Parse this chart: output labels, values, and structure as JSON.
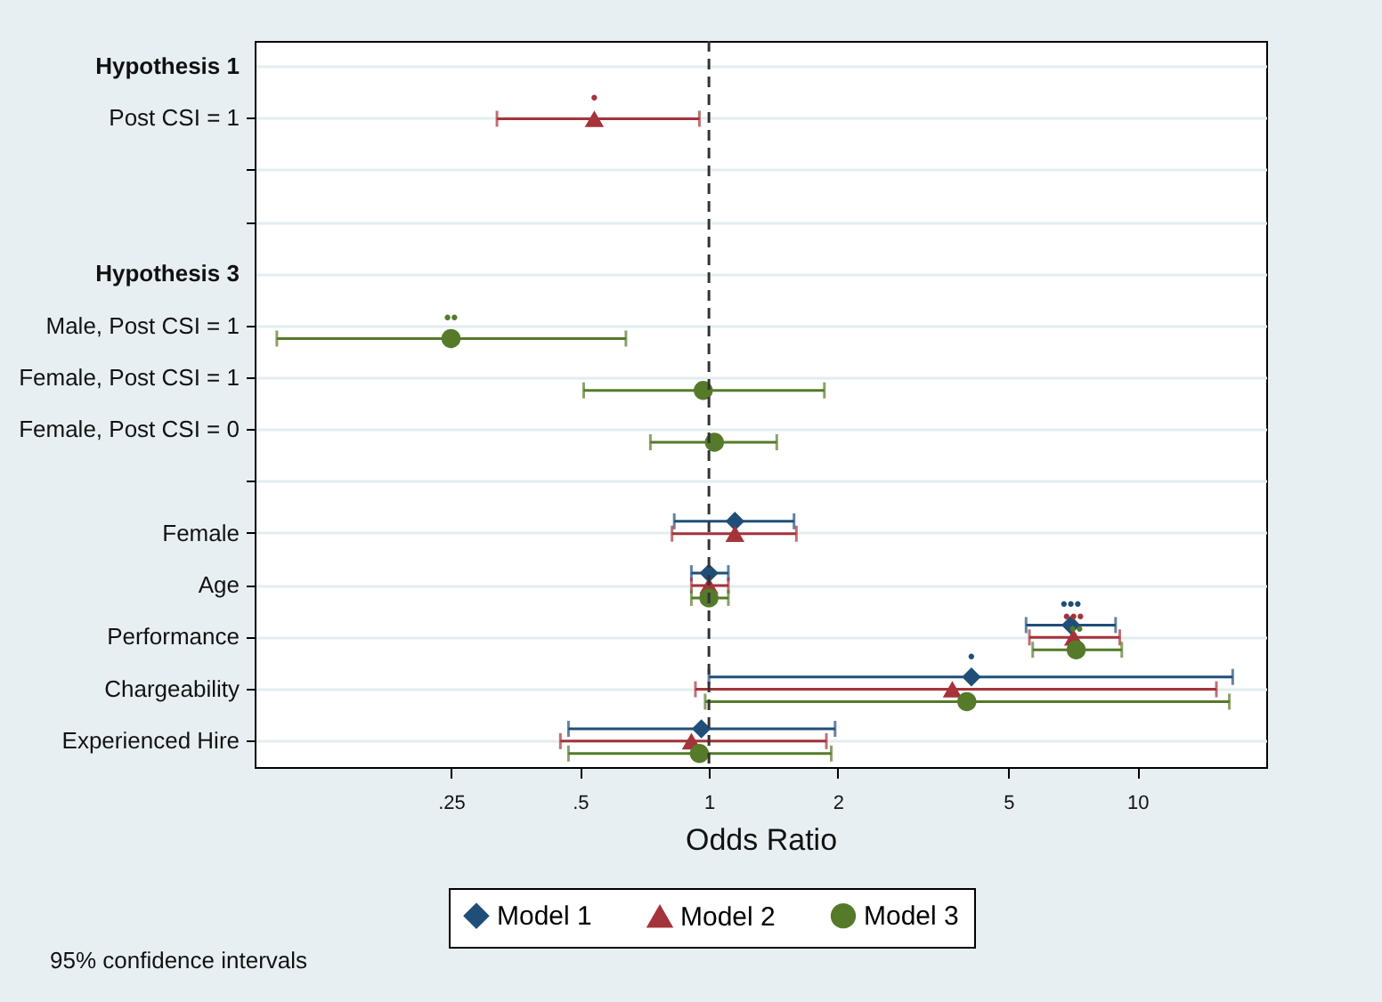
{
  "chart_data": {
    "type": "scatter",
    "orientation": "horizontal",
    "xlabel": "Odds Ratio",
    "log": "x",
    "grid": "y",
    "legend": "bottom",
    "categories": [
      "Hypothesis 1",
      "Post CSI = 1",
      null,
      null,
      "Hypothesis 3",
      "Male, Post CSI = 1",
      "Female, Post CSI = 1",
      "Female, Post CSI = 0",
      null,
      "Female",
      "Age",
      "Performance",
      "Chargeability",
      "Experienced Hire"
    ],
    "xlim": [
      0.087,
      20
    ],
    "xticks": [
      {
        "value": 0.25,
        "label": ".25"
      },
      {
        "value": 0.5,
        "label": ".5"
      },
      1,
      2,
      5,
      10
    ],
    "ref_lines": [
      {
        "axis": "x",
        "value": 1,
        "color": "#333333",
        "line_style": "dashed"
      }
    ],
    "series": [
      {
        "name": "Model 1",
        "color": "#1f4e79",
        "marker": "diamond",
        "values": [
          null,
          null,
          null,
          null,
          null,
          null,
          null,
          null,
          null,
          1.15,
          1.0,
          7.0,
          4.1,
          0.96
        ],
        "errors": [
          null,
          null,
          null,
          null,
          null,
          null,
          null,
          null,
          null,
          [
            0.83,
            1.58
          ],
          [
            0.91,
            1.11
          ],
          [
            5.5,
            8.9
          ],
          [
            1.0,
            16.7
          ],
          [
            0.47,
            1.97
          ]
        ],
        "value_labels": [
          null,
          null,
          null,
          null,
          null,
          null,
          null,
          null,
          null,
          null,
          null,
          "•••",
          "•",
          null
        ]
      },
      {
        "name": "Model 2",
        "color": "#a5333a",
        "marker": "triangle",
        "values": [
          null,
          0.54,
          null,
          null,
          null,
          null,
          null,
          null,
          null,
          1.15,
          1.0,
          7.1,
          3.7,
          0.91
        ],
        "errors": [
          null,
          [
            0.32,
            0.95
          ],
          null,
          null,
          null,
          null,
          null,
          null,
          null,
          [
            0.82,
            1.6
          ],
          [
            0.91,
            1.11
          ],
          [
            5.6,
            9.1
          ],
          [
            0.93,
            15.3
          ],
          [
            0.45,
            1.88
          ]
        ],
        "value_labels": [
          null,
          "•",
          null,
          null,
          null,
          null,
          null,
          null,
          null,
          null,
          null,
          "•••",
          null,
          null
        ]
      },
      {
        "name": "Model 3",
        "color": "#557a2a",
        "marker": "circle",
        "values": [
          null,
          null,
          null,
          null,
          null,
          0.25,
          0.97,
          1.03,
          null,
          null,
          1.0,
          7.2,
          4.0,
          0.95
        ],
        "errors": [
          null,
          null,
          null,
          null,
          null,
          [
            0.098,
            0.64
          ],
          [
            0.51,
            1.86
          ],
          [
            0.73,
            1.44
          ],
          null,
          null,
          [
            0.91,
            1.11
          ],
          [
            5.7,
            9.2
          ],
          [
            0.98,
            16.4
          ],
          [
            0.47,
            1.93
          ]
        ],
        "value_labels": [
          null,
          null,
          null,
          null,
          null,
          "••",
          null,
          null,
          null,
          null,
          null,
          "••",
          null,
          null
        ]
      }
    ],
    "annotations": [
      "95% confidence intervals"
    ]
  }
}
